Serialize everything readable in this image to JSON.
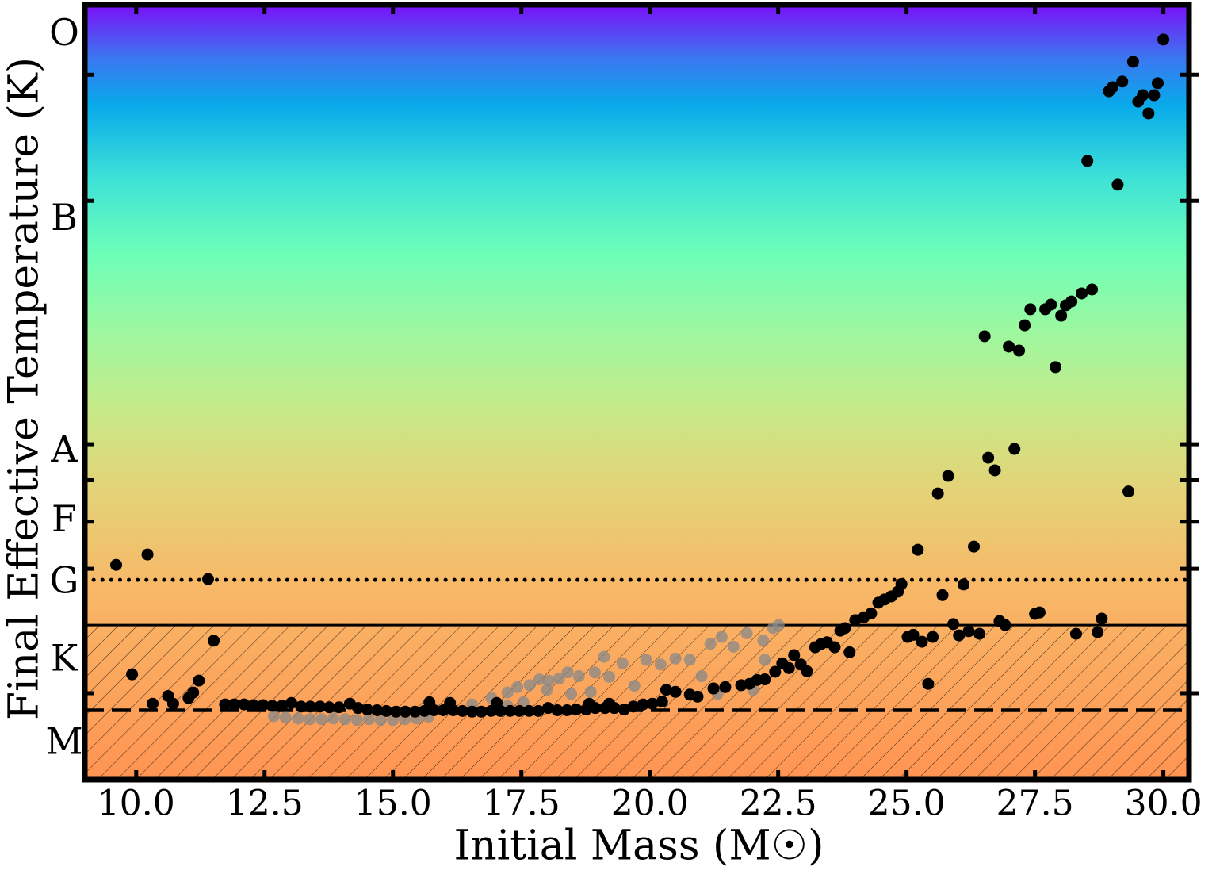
{
  "chart_data": {
    "type": "scatter",
    "xlabel": "Initial Mass (M☉)",
    "ylabel": "Final Effective Temperature (K)",
    "xlim": [
      9.0,
      30.5
    ],
    "xticks": [
      {
        "value": 10,
        "label": "10.0"
      },
      12.5,
      {
        "value": 15,
        "label": "15.0"
      },
      17.5,
      {
        "value": 20,
        "label": "20.0"
      },
      22.5,
      {
        "value": 25,
        "label": "25.0"
      },
      27.5,
      {
        "value": 30,
        "label": "30.0"
      }
    ],
    "ylim": [
      2200,
      72700
    ],
    "yscale": "log",
    "yticks": [
      53000,
      30000,
      10000,
      8500,
      7050,
      5700,
      3250
    ],
    "spectral_classes": [
      {
        "value": 63200,
        "label": "O"
      },
      {
        "value": 27450,
        "label": "B"
      },
      {
        "value": 9650,
        "label": "A"
      },
      {
        "value": 7040,
        "label": "F"
      },
      {
        "value": 5340,
        "label": "G"
      },
      {
        "value": 3760,
        "label": "K"
      },
      {
        "value": 2580,
        "label": "M"
      }
    ],
    "hlines": [
      {
        "value": 5420,
        "style": "dotted"
      },
      {
        "value": 4420,
        "style": "solid",
        "hatched": true
      },
      {
        "value": 3010,
        "style": "dashed"
      }
    ],
    "series": [
      {
        "color": "#888888",
        "alpha": 0.75,
        "x": [
          12.68,
          12.91,
          13.15,
          13.38,
          13.61,
          13.84,
          14.07,
          14.3,
          14.53,
          14.76,
          15.0,
          15.23,
          15.46,
          15.69,
          16.54,
          16.92,
          17.23,
          17.42,
          17.66,
          17.85,
          18.03,
          18.23,
          18.4,
          18.62,
          18.93,
          19.11,
          19.47,
          19.93,
          20.21,
          20.5,
          20.78,
          21.18,
          21.4,
          21.63,
          21.89,
          22.21,
          22.4,
          22.51,
          22.24,
          22.01,
          21.01,
          21.32,
          19.7,
          19.21,
          18.85,
          18.47,
          18.0,
          17.54,
          17.23
        ],
        "values": [
          2930,
          2910,
          2900,
          2890,
          2890,
          2900,
          2890,
          2880,
          2890,
          2880,
          2880,
          2890,
          2900,
          2920,
          3090,
          3180,
          3260,
          3340,
          3370,
          3460,
          3440,
          3470,
          3570,
          3510,
          3570,
          3830,
          3720,
          3780,
          3700,
          3800,
          3780,
          4060,
          4190,
          4010,
          4260,
          4120,
          4360,
          4420,
          3780,
          3300,
          3510,
          3240,
          3360,
          3500,
          3270,
          3240,
          3300,
          3120,
          3070
        ]
      },
      {
        "color": "#000000",
        "alpha": 1,
        "x": [
          9.61,
          10.22,
          11.4,
          9.92,
          10.32,
          10.62,
          10.72,
          11.02,
          11.11,
          11.22,
          11.51,
          11.73,
          11.91,
          12.1,
          12.28,
          12.47,
          12.65,
          12.84,
          13.02,
          13.21,
          13.39,
          13.58,
          13.76,
          13.95,
          14.16,
          14.32,
          14.5,
          14.69,
          14.87,
          15.06,
          15.24,
          15.43,
          15.61,
          15.71,
          15.8,
          15.98,
          16.11,
          16.17,
          16.35,
          16.54,
          16.72,
          16.91,
          17.02,
          17.09,
          17.28,
          17.46,
          17.65,
          17.83,
          18.02,
          18.2,
          18.39,
          18.57,
          18.76,
          18.82,
          18.94,
          19.13,
          19.21,
          19.31,
          19.5,
          19.68,
          19.87,
          20.05,
          20.24,
          20.32,
          20.5,
          20.78,
          20.93,
          21.24,
          21.47,
          21.78,
          21.94,
          22.09,
          22.24,
          22.44,
          22.58,
          22.71,
          22.81,
          22.94,
          23.06,
          23.22,
          23.34,
          23.45,
          23.6,
          23.71,
          23.8,
          23.89,
          24.0,
          24.17,
          24.31,
          24.45,
          24.57,
          24.7,
          24.83,
          24.9,
          25.22,
          25.02,
          25.13,
          25.3,
          25.51,
          25.42,
          25.61,
          25.7,
          25.81,
          25.91,
          26.02,
          26.11,
          26.21,
          26.31,
          26.42,
          26.52,
          26.59,
          26.72,
          26.81,
          26.92,
          26.99,
          27.1,
          27.19,
          27.3,
          27.41,
          27.5,
          27.59,
          27.7,
          27.81,
          27.9,
          28.01,
          28.1,
          28.21,
          28.3,
          28.41,
          28.52,
          28.61,
          28.72,
          28.8,
          29.11,
          28.94,
          29.01,
          29.2,
          29.32,
          29.41,
          29.51,
          29.6,
          29.71,
          29.82,
          29.89,
          30.0
        ],
        "values": [
          5800,
          6080,
          5440,
          3540,
          3100,
          3210,
          3100,
          3180,
          3260,
          3440,
          4120,
          3090,
          3090,
          3090,
          3080,
          3080,
          3070,
          3070,
          3110,
          3060,
          3060,
          3060,
          3050,
          3050,
          3100,
          3040,
          3020,
          3010,
          3000,
          2990,
          2990,
          2990,
          3000,
          3120,
          3010,
          3010,
          3110,
          3010,
          3000,
          2990,
          2990,
          3000,
          3110,
          3000,
          3000,
          3000,
          3000,
          3000,
          3040,
          3010,
          3010,
          3020,
          3020,
          3100,
          3040,
          3040,
          3100,
          3040,
          3020,
          3060,
          3090,
          3100,
          3130,
          3300,
          3270,
          3230,
          3200,
          3320,
          3340,
          3370,
          3390,
          3450,
          3460,
          3580,
          3720,
          3640,
          3860,
          3700,
          3590,
          4000,
          4060,
          4090,
          4000,
          4310,
          4360,
          3910,
          4520,
          4580,
          4660,
          4890,
          4960,
          5030,
          5140,
          5320,
          6210,
          4190,
          4230,
          4100,
          4190,
          3390,
          8010,
          5060,
          8670,
          4440,
          4220,
          5310,
          4300,
          6300,
          4250,
          16280,
          9410,
          8890,
          4500,
          4420,
          15540,
          9790,
          15260,
          17110,
          18390,
          4650,
          4680,
          18390,
          18780,
          14160,
          17860,
          18720,
          19050,
          4250,
          19750,
          35920,
          20110,
          4280,
          4550,
          32270,
          49200,
          50100,
          51400,
          8080,
          56200,
          46960,
          48330,
          44520,
          48330,
          51030,
          62120
        ]
      }
    ]
  }
}
